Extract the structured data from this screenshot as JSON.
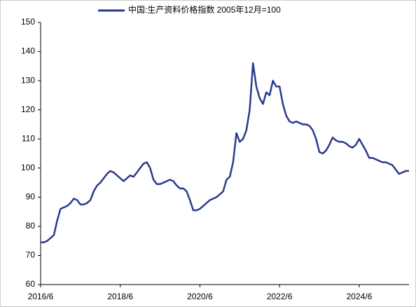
{
  "chart_data": {
    "type": "line",
    "legend_label": "中国:生产资料价格指数 2005年12月=100",
    "x": [
      "2016/6",
      "2016/7",
      "2016/8",
      "2016/9",
      "2016/10",
      "2016/11",
      "2016/12",
      "2017/1",
      "2017/2",
      "2017/3",
      "2017/4",
      "2017/5",
      "2017/6",
      "2017/7",
      "2017/8",
      "2017/9",
      "2017/10",
      "2017/11",
      "2017/12",
      "2018/1",
      "2018/2",
      "2018/3",
      "2018/4",
      "2018/5",
      "2018/6",
      "2018/7",
      "2018/8",
      "2018/9",
      "2018/10",
      "2018/11",
      "2018/12",
      "2019/1",
      "2019/2",
      "2019/3",
      "2019/4",
      "2019/5",
      "2019/6",
      "2019/7",
      "2019/8",
      "2019/9",
      "2019/10",
      "2019/11",
      "2019/12",
      "2020/1",
      "2020/2",
      "2020/3",
      "2020/4",
      "2020/5",
      "2020/6",
      "2020/7",
      "2020/8",
      "2020/9",
      "2020/10",
      "2020/11",
      "2020/12",
      "2021/1",
      "2021/2",
      "2021/3",
      "2021/4",
      "2021/5",
      "2021/6",
      "2021/7",
      "2021/8",
      "2021/9",
      "2021/10",
      "2021/11",
      "2021/12",
      "2022/1",
      "2022/2",
      "2022/3",
      "2022/4",
      "2022/5",
      "2022/6",
      "2022/7",
      "2022/8",
      "2022/9",
      "2022/10",
      "2022/11",
      "2022/12",
      "2023/1",
      "2023/2",
      "2023/3",
      "2023/4",
      "2023/5",
      "2023/6",
      "2023/7",
      "2023/8",
      "2023/9",
      "2023/10",
      "2023/11",
      "2023/12",
      "2024/1",
      "2024/2",
      "2024/3",
      "2024/4",
      "2024/5",
      "2024/6",
      "2024/7",
      "2024/8",
      "2024/9",
      "2024/10",
      "2024/11",
      "2024/12",
      "2025/1",
      "2025/2",
      "2025/3",
      "2025/4",
      "2025/5",
      "2025/6",
      "2025/7",
      "2025/8",
      "2025/9"
    ],
    "series": [
      {
        "name": "中国:生产资料价格指数 2005年12月=100",
        "color": "#2b3a8f",
        "values": [
          74.5,
          74.5,
          75,
          76,
          77,
          82,
          86,
          86.5,
          87,
          88,
          89.5,
          89,
          87.5,
          87.5,
          88,
          89,
          92,
          94,
          95,
          96.5,
          98,
          99,
          98.5,
          97.5,
          96.5,
          95.5,
          96.5,
          97.5,
          97,
          98.5,
          100,
          101.5,
          102,
          100,
          96,
          94.5,
          94.5,
          95,
          95.5,
          96,
          95.5,
          94,
          93,
          93,
          92,
          89,
          85.5,
          85.5,
          86,
          87,
          88,
          89,
          89.5,
          90,
          91,
          92,
          96,
          97,
          102,
          112,
          109,
          110,
          113,
          120,
          136,
          128,
          124,
          122,
          126,
          125,
          130,
          128,
          128,
          122,
          118,
          116,
          115.5,
          116,
          115.5,
          115,
          115,
          114.5,
          113,
          110,
          105.5,
          105,
          106,
          108,
          110.5,
          109.5,
          109,
          109,
          108.5,
          107.5,
          107,
          108,
          110,
          108,
          106,
          103.5,
          103.5,
          103,
          102.5,
          102,
          102,
          101.5,
          101,
          99.5,
          98,
          98.5,
          99,
          99
        ]
      }
    ],
    "xticks": [
      "2016/6",
      "2018/6",
      "2020/6",
      "2022/6",
      "2024/6"
    ],
    "ylim": [
      60,
      150
    ],
    "yticks": [
      60,
      70,
      80,
      90,
      100,
      110,
      120,
      130,
      140,
      150
    ],
    "grid": false
  }
}
